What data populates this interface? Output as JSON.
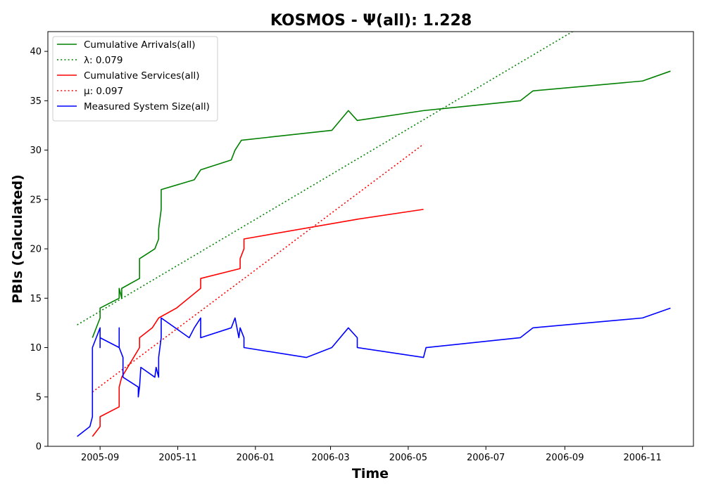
{
  "chart_data": {
    "type": "line",
    "title": "KOSMOS -  Ψ(all): 1.228",
    "xlabel": "Time",
    "ylabel": "PBIs (Calculated)",
    "xlim": [
      "2005-07-22",
      "2006-12-11"
    ],
    "ylim": [
      0,
      42
    ],
    "x_ticks": [
      "2005-09-01",
      "2005-11-01",
      "2006-01-01",
      "2006-03-01",
      "2006-05-01",
      "2006-07-01",
      "2006-09-01",
      "2006-11-01"
    ],
    "x_tick_labels": [
      "2005-09",
      "2005-11",
      "2006-01",
      "2006-03",
      "2006-05",
      "2006-07",
      "2006-09",
      "2006-11"
    ],
    "y_ticks": [
      0,
      5,
      10,
      15,
      20,
      25,
      30,
      35,
      40
    ],
    "grid": false,
    "legend_position": "top-left",
    "series": [
      {
        "name": "Cumulative Arrivals(all)",
        "style": "solid",
        "color": "#008000",
        "points": [
          [
            "2005-08-26",
            11
          ],
          [
            "2005-09-01",
            13
          ],
          [
            "2005-09-01",
            14
          ],
          [
            "2005-09-16",
            15
          ],
          [
            "2005-09-16",
            16
          ],
          [
            "2005-09-18",
            15
          ],
          [
            "2005-09-18",
            16
          ],
          [
            "2005-10-02",
            17
          ],
          [
            "2005-10-02",
            19
          ],
          [
            "2005-10-14",
            20
          ],
          [
            "2005-10-17",
            21
          ],
          [
            "2005-10-17",
            22
          ],
          [
            "2005-10-19",
            24
          ],
          [
            "2005-10-19",
            26
          ],
          [
            "2005-11-14",
            27
          ],
          [
            "2005-11-19",
            28
          ],
          [
            "2005-12-13",
            29
          ],
          [
            "2005-12-16",
            30
          ],
          [
            "2005-12-21",
            31
          ],
          [
            "2006-03-02",
            32
          ],
          [
            "2006-03-15",
            34
          ],
          [
            "2006-03-22",
            33
          ],
          [
            "2006-05-13",
            34
          ],
          [
            "2006-07-28",
            35
          ],
          [
            "2006-08-07",
            36
          ],
          [
            "2006-11-01",
            37
          ],
          [
            "2006-11-23",
            38
          ]
        ]
      },
      {
        "name": "λ: 0.079",
        "style": "dotted",
        "color": "#008000",
        "points": [
          [
            "2005-08-14",
            12.3
          ],
          [
            "2006-09-07",
            42
          ]
        ]
      },
      {
        "name": "Cumulative Services(all)",
        "style": "solid",
        "color": "#ff0000",
        "points": [
          [
            "2005-08-26",
            1
          ],
          [
            "2005-09-01",
            2
          ],
          [
            "2005-09-01",
            3
          ],
          [
            "2005-09-16",
            4
          ],
          [
            "2005-09-16",
            6
          ],
          [
            "2005-09-18",
            7
          ],
          [
            "2005-10-02",
            10
          ],
          [
            "2005-10-02",
            11
          ],
          [
            "2005-10-12",
            12
          ],
          [
            "2005-10-17",
            13
          ],
          [
            "2005-10-31",
            14
          ],
          [
            "2005-11-19",
            16
          ],
          [
            "2005-11-19",
            17
          ],
          [
            "2005-12-20",
            18
          ],
          [
            "2005-12-20",
            19
          ],
          [
            "2005-12-23",
            20
          ],
          [
            "2005-12-23",
            21
          ],
          [
            "2006-03-22",
            23
          ],
          [
            "2006-05-13",
            24
          ]
        ]
      },
      {
        "name": "μ: 0.097",
        "style": "dotted",
        "color": "#ff0000",
        "points": [
          [
            "2005-08-26",
            5.5
          ],
          [
            "2006-05-13",
            30.6
          ]
        ]
      },
      {
        "name": "Measured System Size(all)",
        "style": "solid",
        "color": "#0000ff",
        "points": [
          [
            "2005-08-14",
            1
          ],
          [
            "2005-08-24",
            2
          ],
          [
            "2005-08-26",
            3
          ],
          [
            "2005-08-26",
            5
          ],
          [
            "2005-08-26",
            10
          ],
          [
            "2005-09-01",
            12
          ],
          [
            "2005-09-01",
            10
          ],
          [
            "2005-09-01",
            11
          ],
          [
            "2005-09-16",
            10
          ],
          [
            "2005-09-16",
            12
          ],
          [
            "2005-09-16",
            10
          ],
          [
            "2005-09-19",
            9
          ],
          [
            "2005-09-19",
            7
          ],
          [
            "2005-10-01",
            6
          ],
          [
            "2005-10-01",
            5
          ],
          [
            "2005-10-02",
            6
          ],
          [
            "2005-10-03",
            8
          ],
          [
            "2005-10-14",
            7
          ],
          [
            "2005-10-15",
            8
          ],
          [
            "2005-10-17",
            7
          ],
          [
            "2005-10-17",
            9
          ],
          [
            "2005-10-19",
            11
          ],
          [
            "2005-10-19",
            13
          ],
          [
            "2005-11-10",
            11
          ],
          [
            "2005-11-14",
            12
          ],
          [
            "2005-11-19",
            13
          ],
          [
            "2005-11-19",
            11
          ],
          [
            "2005-12-13",
            12
          ],
          [
            "2005-12-16",
            13
          ],
          [
            "2005-12-19",
            11
          ],
          [
            "2005-12-20",
            12
          ],
          [
            "2005-12-23",
            11
          ],
          [
            "2005-12-23",
            10
          ],
          [
            "2006-02-10",
            9
          ],
          [
            "2006-03-02",
            10
          ],
          [
            "2006-03-15",
            12
          ],
          [
            "2006-03-22",
            11
          ],
          [
            "2006-03-22",
            10
          ],
          [
            "2006-05-13",
            9
          ],
          [
            "2006-05-15",
            10
          ],
          [
            "2006-07-28",
            11
          ],
          [
            "2006-08-07",
            12
          ],
          [
            "2006-11-01",
            13
          ],
          [
            "2006-11-23",
            14
          ]
        ]
      }
    ],
    "legend": [
      {
        "label": "Cumulative Arrivals(all)",
        "style": "solid",
        "color": "#008000"
      },
      {
        "label": "λ: 0.079",
        "style": "dotted",
        "color": "#008000"
      },
      {
        "label": "Cumulative Services(all)",
        "style": "solid",
        "color": "#ff0000"
      },
      {
        "label": "μ: 0.097",
        "style": "dotted",
        "color": "#ff0000"
      },
      {
        "label": "Measured System Size(all)",
        "style": "solid",
        "color": "#0000ff"
      }
    ]
  }
}
